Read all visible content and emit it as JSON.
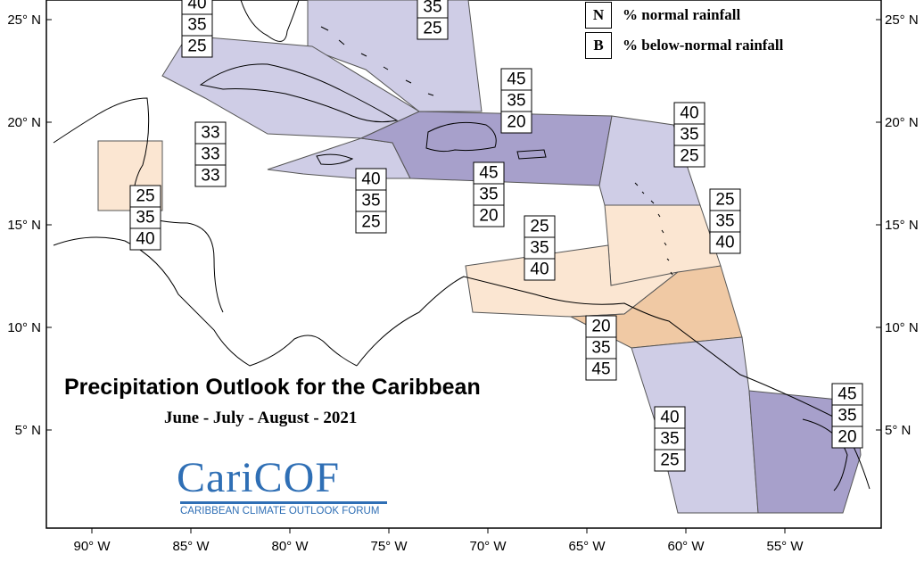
{
  "title": "Precipitation Outlook for the Caribbean",
  "subtitle": "June - July - August - 2021",
  "legend": [
    {
      "key": "N",
      "text": "% normal rainfall"
    },
    {
      "key": "B",
      "text": "% below-normal rainfall"
    }
  ],
  "logo": {
    "name": "CariCOF",
    "subtitle": "CARIBBEAN CLIMATE OUTLOOK FORUM"
  },
  "colors": {
    "above_strong": "#a7a0cb",
    "above_light": "#cfcde6",
    "below_light": "#fbe6d2",
    "below_strong": "#f0c9a4",
    "border": "#555555"
  },
  "lat_labels": [
    "25° N",
    "20° N",
    "15° N",
    "10° N",
    "5° N"
  ],
  "lon_labels": [
    "90° W",
    "85° W",
    "80° W",
    "75° W",
    "70° W",
    "65° W",
    "60° W",
    "55° W"
  ],
  "outlook_boxes": [
    {
      "name": "bahamas-west",
      "values": [
        "40",
        "35",
        "25"
      ]
    },
    {
      "name": "bahamas-east",
      "values": [
        "35",
        "25"
      ]
    },
    {
      "name": "western-caribbean",
      "values": [
        "33",
        "33",
        "33"
      ]
    },
    {
      "name": "jamaica-cayman",
      "values": [
        "40",
        "35",
        "25"
      ]
    },
    {
      "name": "hispaniola-puerto-rico",
      "values": [
        "45",
        "35",
        "20"
      ]
    },
    {
      "name": "central-caribbean-sea",
      "values": [
        "45",
        "35",
        "20"
      ]
    },
    {
      "name": "leeward-islands",
      "values": [
        "40",
        "35",
        "25"
      ]
    },
    {
      "name": "windward-islands",
      "values": [
        "25",
        "35",
        "40"
      ]
    },
    {
      "name": "belize",
      "values": [
        "25",
        "35",
        "40"
      ]
    },
    {
      "name": "abc-islands",
      "values": [
        "25",
        "35",
        "40"
      ]
    },
    {
      "name": "trinidad-tobago",
      "values": [
        "20",
        "35",
        "45"
      ]
    },
    {
      "name": "guyana",
      "values": [
        "40",
        "35",
        "25"
      ]
    },
    {
      "name": "suriname-french-guiana",
      "values": [
        "45",
        "35",
        "20"
      ]
    }
  ]
}
